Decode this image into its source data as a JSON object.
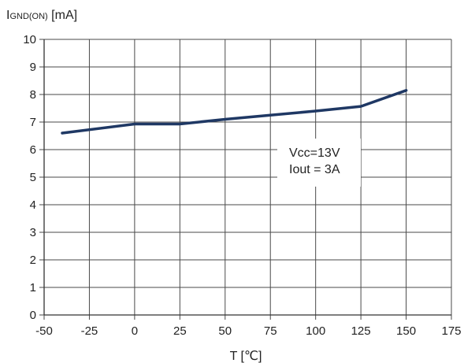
{
  "chart_data": {
    "type": "line",
    "title": "",
    "ylabel_main": "I",
    "ylabel_sub": "GND(ON)",
    "ylabel_unit": " [mA]",
    "xlabel": "T [℃]",
    "xlim": [
      -50,
      175
    ],
    "ylim": [
      0,
      10
    ],
    "xticks": [
      -50,
      -25,
      0,
      25,
      50,
      75,
      100,
      125,
      150,
      175
    ],
    "yticks": [
      0,
      1,
      2,
      3,
      4,
      5,
      6,
      7,
      8,
      9,
      10
    ],
    "grid": true,
    "series": [
      {
        "color": "#1f3864",
        "x": [
          -40,
          0,
          25,
          50,
          75,
          100,
          125,
          150
        ],
        "y": [
          6.6,
          6.93,
          6.93,
          7.1,
          7.25,
          7.4,
          7.57,
          8.15
        ]
      }
    ],
    "annotations": [
      "Vcc=13V",
      "Iout = 3A"
    ]
  }
}
